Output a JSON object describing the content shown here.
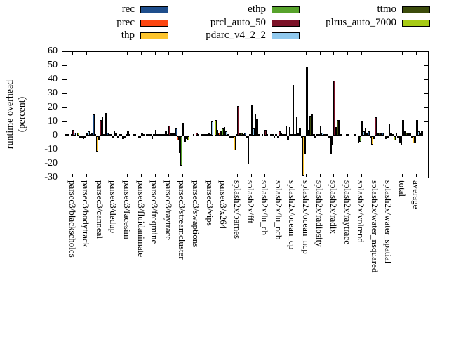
{
  "y_axis": {
    "label_line1": "runtime overhead",
    "label_line2": "(percent)",
    "ticks": [
      60,
      50,
      40,
      30,
      20,
      10,
      0,
      -10,
      -20,
      -30
    ],
    "min": -30,
    "max": 60
  },
  "legend": {
    "items": [
      {
        "label": "rec",
        "color": "#1e4e8c"
      },
      {
        "label": "prec",
        "color": "#fc4611"
      },
      {
        "label": "thp",
        "color": "#fcc42d"
      },
      {
        "label": "ethp",
        "color": "#57a32b"
      },
      {
        "label": "prcl_auto_50",
        "color": "#7c1228"
      },
      {
        "label": "pdarc_v4_2_2",
        "color": "#90c9ee"
      },
      {
        "label": "ttmo",
        "color": "#3c4c0c"
      },
      {
        "label": "plrus_auto_7000",
        "color": "#a7cb15"
      }
    ]
  },
  "chart_data": {
    "type": "bar",
    "title": "",
    "xlabel": "",
    "ylabel": "runtime overhead (percent)",
    "ylim": [
      -30,
      60
    ],
    "grid": false,
    "legend_position": "top",
    "categories": [
      "parsec3/blackscholes",
      "parsec3/bodytrack",
      "parsec3/canneal",
      "parsec3/dedup",
      "parsec3/facesim",
      "parsec3/fluidanimate",
      "parsec3/freqmine",
      "parsec3/raytrace",
      "parsec3/streamcluster",
      "parsec3/swaptions",
      "parsec3/vips",
      "parsec3/x264",
      "splash2x/barnes",
      "splash2x/fft",
      "splash2x/lu_cb",
      "splash2x/lu_ncb",
      "splash2x/ocean_cp",
      "splash2x/ocean_ncp",
      "splash2x/radiosity",
      "splash2x/radix",
      "splash2x/raytrace",
      "splash2x/volrend",
      "splash2x/water_nsquared",
      "splash2x/water_spatial",
      "total",
      "average"
    ],
    "series": [
      {
        "name": "rec",
        "color": "#1e4e8c",
        "values": [
          1,
          -1,
          15,
          2,
          1,
          1,
          1,
          1,
          5,
          0,
          1,
          4,
          -1,
          2,
          1,
          1,
          7,
          5,
          1,
          1,
          1,
          1,
          3,
          2,
          2,
          2
        ]
      },
      {
        "name": "prec",
        "color": "#fc4611",
        "values": [
          1,
          -1,
          1,
          1,
          -2,
          0,
          1,
          1,
          -3,
          0,
          1,
          2,
          -1,
          -1,
          0,
          -1,
          -3,
          -1,
          -1,
          -1,
          0,
          0,
          -1,
          0,
          -1,
          -1
        ]
      },
      {
        "name": "thp",
        "color": "#fcc42d",
        "values": [
          0,
          -2,
          -11,
          1,
          -1,
          -1,
          -2,
          3,
          -12,
          1,
          1,
          3,
          -10,
          -20,
          1,
          1,
          6,
          -28,
          1,
          -13,
          0,
          -5,
          -6,
          -2,
          -5,
          -5
        ]
      },
      {
        "name": "ethp",
        "color": "#57a32b",
        "values": [
          1,
          -1,
          -3,
          -1,
          1,
          -1,
          1,
          1,
          -21,
          0,
          2,
          5,
          1,
          1,
          0,
          -1,
          1,
          -13,
          1,
          -6,
          1,
          -4,
          -2,
          -1,
          -6,
          -5
        ]
      },
      {
        "name": "prcl_auto_50",
        "color": "#7c1228",
        "values": [
          4,
          2,
          11,
          3,
          3,
          2,
          4,
          7,
          9,
          2,
          1,
          6,
          21,
          22,
          4,
          3,
          36,
          49,
          7,
          39,
          1,
          10,
          13,
          8,
          11,
          11
        ]
      },
      {
        "name": "pdarc_v4_2_2",
        "color": "#90c9ee",
        "values": [
          2,
          3,
          13,
          2,
          1,
          1,
          1,
          2,
          -4,
          1,
          10,
          3,
          2,
          5,
          1,
          2,
          1,
          4,
          2,
          6,
          0,
          3,
          2,
          2,
          3,
          3
        ]
      },
      {
        "name": "ttmo",
        "color": "#3c4c0c",
        "values": [
          0,
          1,
          1,
          -1,
          0,
          0,
          1,
          2,
          -2,
          0,
          0,
          1,
          2,
          15,
          0,
          1,
          13,
          14,
          1,
          11,
          0,
          5,
          2,
          1,
          2,
          2
        ]
      },
      {
        "name": "plrus_auto_7000",
        "color": "#a7cb15",
        "values": [
          2,
          2,
          16,
          1,
          1,
          1,
          1,
          2,
          -3,
          1,
          11,
          -1,
          1,
          12,
          1,
          1,
          2,
          15,
          1,
          11,
          0,
          2,
          2,
          -3,
          2,
          3
        ]
      }
    ]
  }
}
